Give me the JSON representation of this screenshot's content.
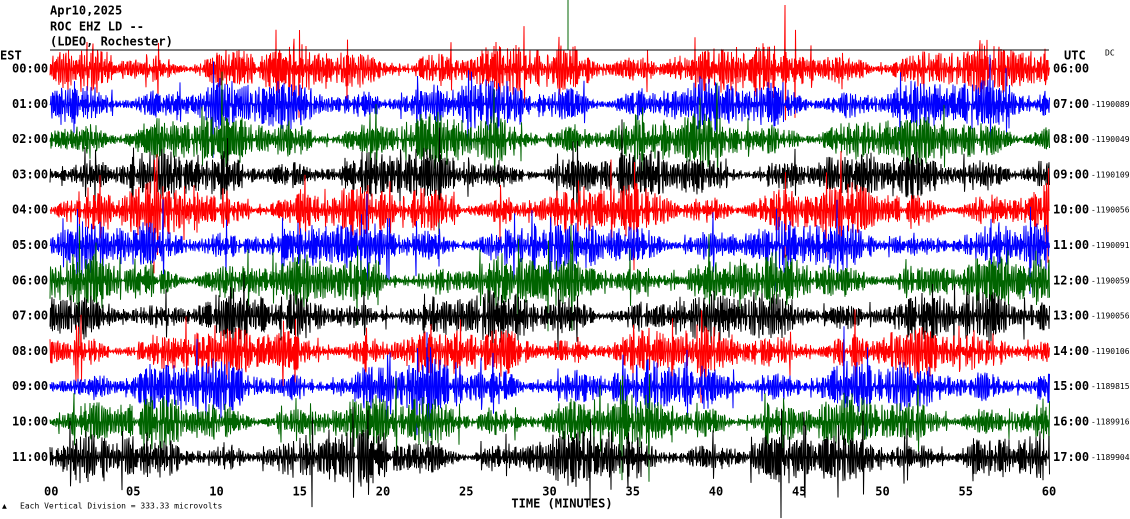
{
  "header": {
    "date": "Apr10,2025",
    "station": "ROC EHZ LD --",
    "location": "(LDEO, Rochester)"
  },
  "left_axis": {
    "title": "EST",
    "labels": [
      "00:00",
      "01:00",
      "02:00",
      "03:00",
      "04:00",
      "05:00",
      "06:00",
      "07:00",
      "08:00",
      "09:00",
      "10:00",
      "11:00"
    ]
  },
  "right_axis": {
    "title": "UTC",
    "dc_title": "DC",
    "labels": [
      "06:00",
      "07:00",
      "08:00",
      "09:00",
      "10:00",
      "11:00",
      "12:00",
      "13:00",
      "14:00",
      "15:00",
      "16:00",
      "17:00"
    ],
    "dc_values": [
      null,
      "-1190089",
      "-1190049",
      "-1190109",
      "-1190056",
      "-1190091",
      "-1190059",
      "-1190056",
      "-1190106",
      "-1189815",
      "-1189916",
      "-1189904"
    ]
  },
  "x_axis": {
    "title": "TIME (MINUTES)",
    "labels": [
      "00",
      "05",
      "10",
      "15",
      "20",
      "25",
      "30",
      "35",
      "40",
      "45",
      "50",
      "55",
      "60"
    ]
  },
  "footer": {
    "scale_note": "Each Vertical Division = 333.33 microvolts"
  }
}
